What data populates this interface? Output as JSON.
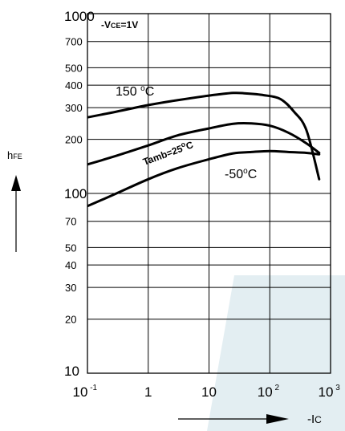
{
  "chart_data": {
    "type": "line",
    "condition": "-VCE=1V",
    "condition_prefix": "-V",
    "condition_sub": "CE",
    "condition_suffix": "=1V",
    "x_scale": "log",
    "y_scale": "log",
    "xlim": [
      0.1,
      1000
    ],
    "ylim": [
      10,
      1000
    ],
    "grid": true,
    "x_ticks": [
      {
        "v": 0.1,
        "base": "10",
        "sup": " -1"
      },
      {
        "v": 1,
        "base": "1",
        "sup": ""
      },
      {
        "v": 10,
        "base": "10",
        "sup": ""
      },
      {
        "v": 100,
        "base": "10",
        "sup": " 2"
      },
      {
        "v": 1000,
        "base": "10",
        "sup": " 3"
      }
    ],
    "y_ticks": [
      {
        "v": 10,
        "label": "10",
        "big": true
      },
      {
        "v": 20,
        "label": "20"
      },
      {
        "v": 30,
        "label": "30"
      },
      {
        "v": 40,
        "label": "40"
      },
      {
        "v": 50,
        "label": "50"
      },
      {
        "v": 70,
        "label": "70"
      },
      {
        "v": 100,
        "label": "100",
        "big": true
      },
      {
        "v": 200,
        "label": "200"
      },
      {
        "v": 300,
        "label": "300"
      },
      {
        "v": 400,
        "label": "400"
      },
      {
        "v": 500,
        "label": "500"
      },
      {
        "v": 700,
        "label": "700"
      },
      {
        "v": 1000,
        "label": "1000",
        "big": true
      }
    ],
    "ylabel_main": "h",
    "ylabel_sub": "FE",
    "xlabel_prefix": "-I",
    "xlabel_sub": "C",
    "series": [
      {
        "name": "150 °C",
        "label_main": "150 ",
        "label_deg": "o",
        "label_unit": "C",
        "x": [
          0.1,
          0.3,
          1,
          3,
          10,
          25,
          40,
          80,
          150,
          250,
          400,
          650
        ],
        "y": [
          265,
          285,
          310,
          330,
          350,
          362,
          360,
          352,
          335,
          285,
          225,
          120
        ]
      },
      {
        "name": "Tamb=25°C",
        "label_main": "Tamb=25",
        "label_deg": "o",
        "label_unit": "C",
        "x": [
          0.1,
          0.3,
          1,
          3,
          10,
          25,
          50,
          100,
          200,
          400,
          650
        ],
        "y": [
          145,
          162,
          185,
          210,
          230,
          244,
          245,
          238,
          218,
          190,
          168
        ]
      },
      {
        "name": "-50 °C",
        "label_main": "-50",
        "label_deg": "o",
        "label_unit": "C",
        "x": [
          0.1,
          0.3,
          1,
          3,
          10,
          25,
          50,
          100,
          200,
          400,
          650
        ],
        "y": [
          85,
          100,
          120,
          138,
          155,
          167,
          170,
          172,
          170,
          168,
          165
        ]
      }
    ]
  }
}
